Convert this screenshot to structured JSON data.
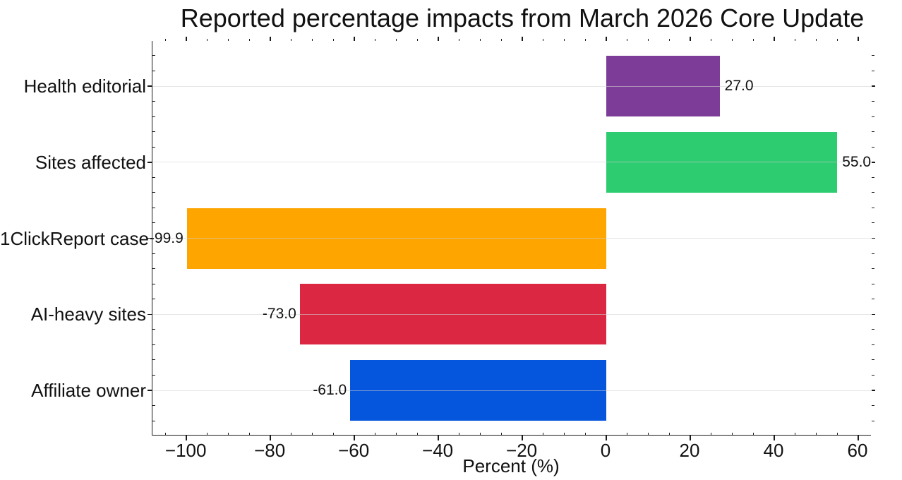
{
  "chart_data": {
    "type": "bar",
    "orientation": "horizontal",
    "title": "Reported percentage impacts from March 2026 Core Update",
    "xlabel": "Percent (%)",
    "categories": [
      "Health editorial",
      "Sites affected",
      "1ClickReport case",
      "AI-heavy sites",
      "Affiliate owner"
    ],
    "values": [
      27.0,
      55.0,
      -99.9,
      -73.0,
      -61.0
    ],
    "value_labels": [
      "27.0",
      "55.0",
      "-99.9",
      "-73.0",
      "-61.0"
    ],
    "bar_colors": [
      "#7D3C98",
      "#2ECC71",
      "#FFA500",
      "#DC2743",
      "#0556DD"
    ],
    "xlim": [
      -108.1,
      63.2
    ],
    "x_major_ticks": [
      -100,
      -80,
      -60,
      -40,
      -20,
      0,
      20,
      40,
      60
    ],
    "x_tick_labels": [
      "−100",
      "−80",
      "−60",
      "−40",
      "−20",
      "0",
      "20",
      "40",
      "60"
    ],
    "x_minor_step": 5,
    "y_minor_divisions": 5,
    "grid": "horizontal-major-only",
    "legend": "none",
    "colors": {
      "background": "#ffffff",
      "spine": "#1a1a1a",
      "grid": "#d2d2d2",
      "text": "#111111"
    }
  }
}
